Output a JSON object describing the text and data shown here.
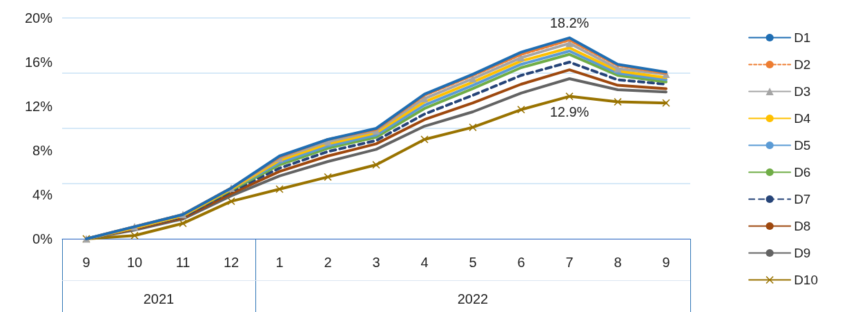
{
  "chart_data": {
    "type": "line",
    "categories": [
      "9",
      "10",
      "11",
      "12",
      "1",
      "2",
      "3",
      "4",
      "5",
      "6",
      "7",
      "8",
      "9"
    ],
    "annotations": [
      "2021",
      "2022"
    ],
    "ylim": [
      0,
      20
    ],
    "yticks": [
      {
        "value": 0,
        "label": "0%"
      },
      {
        "value": 4,
        "label": "4%"
      },
      {
        "value": 8,
        "label": "8%"
      },
      {
        "value": 12,
        "label": "12%"
      },
      {
        "value": 16,
        "label": "16%"
      },
      {
        "value": 20,
        "label": "20%"
      }
    ],
    "grid": "y",
    "legend": "right",
    "marker": "none",
    "line_style": "solid",
    "series": [
      {
        "name": "D1",
        "color": "#1f6eb3",
        "values": [
          0,
          1.1,
          2.2,
          4.6,
          7.5,
          9.0,
          10.0,
          13.1,
          14.9,
          16.9,
          18.2,
          15.8,
          15.1
        ],
        "value_labels": [
          null,
          null,
          null,
          null,
          null,
          null,
          null,
          null,
          null,
          null,
          "18.2%",
          null,
          null
        ]
      },
      {
        "name": "D2",
        "color": "#ed7d31",
        "line_style": "dashed",
        "values": [
          0,
          1.1,
          2.2,
          4.6,
          7.4,
          9.0,
          9.9,
          13.0,
          14.8,
          16.7,
          18.0,
          15.7,
          15.0
        ]
      },
      {
        "name": "D3",
        "color": "#a5a5a5",
        "marker": "triangle",
        "values": [
          0,
          1.1,
          2.2,
          4.6,
          7.3,
          8.8,
          9.8,
          12.7,
          14.5,
          16.4,
          17.7,
          15.4,
          14.9
        ]
      },
      {
        "name": "D4",
        "color": "#ffc000",
        "values": [
          0,
          1.0,
          2.1,
          4.5,
          7.1,
          8.6,
          9.6,
          12.4,
          14.2,
          16.1,
          17.3,
          15.2,
          14.6
        ]
      },
      {
        "name": "D5",
        "color": "#5b9bd5",
        "values": [
          0,
          1.0,
          2.1,
          4.5,
          6.9,
          8.4,
          9.4,
          12.1,
          13.9,
          15.8,
          17.0,
          15.0,
          14.4
        ]
      },
      {
        "name": "D6",
        "color": "#70ad47",
        "values": [
          0,
          1.0,
          2.1,
          4.4,
          6.7,
          8.2,
          9.2,
          11.8,
          13.6,
          15.5,
          16.7,
          14.8,
          14.2
        ]
      },
      {
        "name": "D7",
        "color": "#264478",
        "line_style": "dashed",
        "values": [
          0,
          1.0,
          2.0,
          4.3,
          6.4,
          7.9,
          8.9,
          11.3,
          13.0,
          14.8,
          16.0,
          14.4,
          14.0
        ]
      },
      {
        "name": "D8",
        "color": "#9e480e",
        "values": [
          0,
          0.9,
          1.9,
          4.1,
          6.1,
          7.5,
          8.6,
          10.8,
          12.3,
          14.0,
          15.3,
          13.9,
          13.6
        ]
      },
      {
        "name": "D9",
        "color": "#636363",
        "values": [
          0,
          0.8,
          1.8,
          3.9,
          5.7,
          7.0,
          8.1,
          10.2,
          11.5,
          13.2,
          14.5,
          13.5,
          13.3
        ]
      },
      {
        "name": "D10",
        "color": "#997300",
        "marker": "cross",
        "values": [
          0,
          0.3,
          1.4,
          3.4,
          4.5,
          5.6,
          6.7,
          9.0,
          10.1,
          11.7,
          12.9,
          12.4,
          12.3
        ],
        "value_labels": [
          null,
          null,
          null,
          null,
          null,
          null,
          null,
          null,
          null,
          null,
          "12.9%",
          null,
          null
        ]
      }
    ]
  }
}
